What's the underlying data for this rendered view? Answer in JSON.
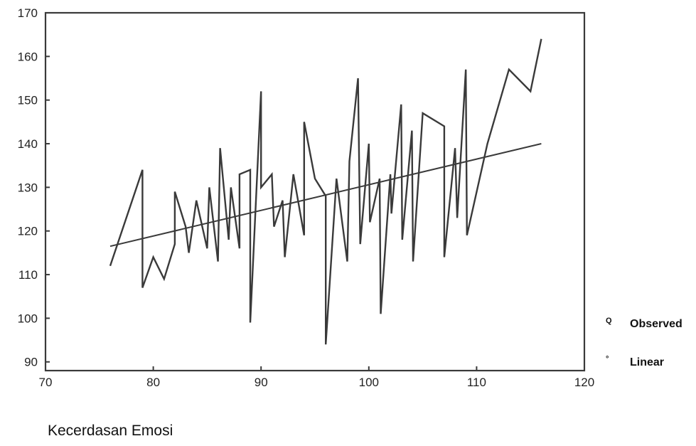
{
  "chart_data": {
    "type": "line",
    "xlabel": "Kecerdasan Emosi",
    "ylabel": "",
    "xlim": [
      70,
      120
    ],
    "ylim": [
      88,
      170
    ],
    "xticks": [
      70,
      80,
      90,
      100,
      110,
      120
    ],
    "yticks": [
      90,
      100,
      110,
      120,
      130,
      140,
      150,
      160,
      170
    ],
    "grid": false,
    "legend_position": "right",
    "line_color": "#3a3a3a",
    "series": [
      {
        "name": "Observed",
        "marker": "Q",
        "x": [
          76,
          79,
          79,
          80,
          81,
          82,
          82,
          83,
          83.3,
          84,
          85,
          85.2,
          86,
          86.2,
          87,
          87.2,
          88,
          88,
          89,
          89,
          90,
          90,
          91,
          91.2,
          92,
          92.2,
          93,
          94,
          94,
          95,
          96,
          96,
          97,
          98,
          98.2,
          99,
          99.2,
          100,
          100.1,
          101,
          101.1,
          102,
          102.1,
          103,
          103.1,
          104,
          104.1,
          105,
          107,
          107,
          108,
          108.2,
          109,
          109.1,
          111,
          113,
          115,
          116
        ],
        "y": [
          112,
          134,
          107,
          114,
          109,
          117,
          129,
          121,
          115,
          127,
          116,
          130,
          113,
          139,
          118,
          130,
          116,
          133,
          134,
          99,
          152,
          130,
          133,
          121,
          127,
          114,
          133,
          119,
          145,
          132,
          128,
          94,
          132,
          113,
          136,
          155,
          117,
          140,
          122,
          132,
          101,
          133,
          124,
          149,
          118,
          143,
          113,
          147,
          144,
          114,
          139,
          123,
          157,
          119,
          140,
          157,
          152,
          164
        ]
      },
      {
        "name": "Linear",
        "marker": "°",
        "x": [
          76,
          116
        ],
        "y": [
          116.5,
          140
        ]
      }
    ]
  }
}
